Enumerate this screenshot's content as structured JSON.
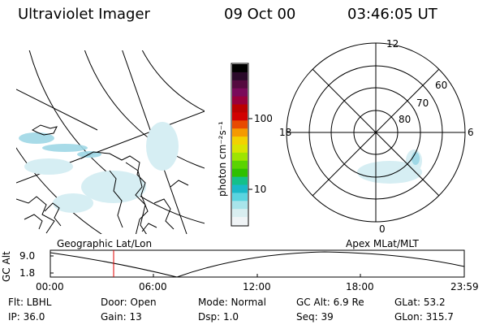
{
  "header": {
    "instrument": "Ultraviolet Imager",
    "date": "09 Oct 00",
    "time": "03:46:05 UT"
  },
  "colorbar": {
    "unit": "photon cm⁻²s⁻¹",
    "tick_labels": [
      "100",
      "10"
    ],
    "colors": [
      "#000000",
      "#2a0a2a",
      "#550a3f",
      "#7a0a5a",
      "#99003b",
      "#bb0000",
      "#d10000",
      "#e84a00",
      "#f59a00",
      "#f2d200",
      "#d9e400",
      "#9ee400",
      "#5ad400",
      "#2ec000",
      "#14c08a",
      "#1ab9c8",
      "#5ad4e0",
      "#a8e4ea",
      "#d9eef0",
      "#f0f4f6"
    ]
  },
  "geo_panel": {
    "label": "Geographic Lat/Lon"
  },
  "polar_panel": {
    "label": "Apex MLat/MLT",
    "mlt_labels": {
      "top": "12",
      "left": "18",
      "right": "6",
      "bottom": "0"
    },
    "mlat_labels": [
      "60",
      "70",
      "80"
    ]
  },
  "timeline": {
    "ylabel": "GC Alt",
    "y_ticks": [
      "9.0",
      "1.8"
    ],
    "x_ticks": [
      "00:00",
      "06:00",
      "12:00",
      "18:00",
      "23:59"
    ],
    "marker_time": "03:46",
    "marker_color": "#e00000"
  },
  "info": {
    "filter": "Flt: LBHL",
    "ip": "IP: 36.0",
    "door": "Door: Open",
    "gain": "Gain: 13",
    "mode": "Mode: Normal",
    "dsp": "Dsp:    1.0",
    "gc_alt": "GC Alt: 6.9 Re",
    "seq": "Seq: 39",
    "glat": "GLat:  53.2",
    "glon": "GLon: 315.7"
  }
}
